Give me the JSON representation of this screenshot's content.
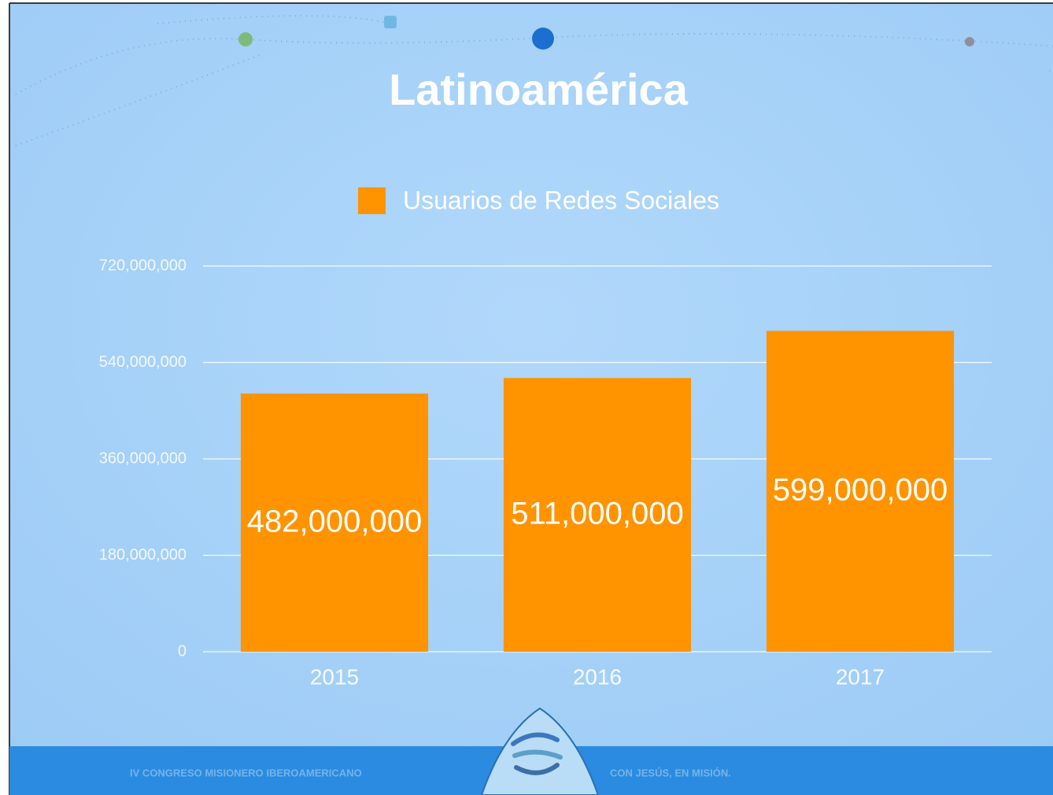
{
  "chart_data": {
    "type": "bar",
    "title": "Latinoamérica",
    "categories": [
      "2015",
      "2016",
      "2017"
    ],
    "series": [
      {
        "name": "Usuarios de Redes Sociales",
        "color": "#ff9300",
        "values": [
          482000000,
          511000000,
          599000000
        ],
        "value_labels": [
          "482,000,000",
          "511,000,000",
          "599,000,000"
        ]
      }
    ],
    "ylim": [
      0,
      720000000
    ],
    "yticks": [
      0,
      {
        "value": 180000000,
        "label": "180,000,000"
      },
      {
        "value": 360000000,
        "label": "360,000,000"
      },
      {
        "value": 540000000,
        "label": "540,000,000"
      },
      {
        "value": 720000000,
        "label": "720,000,000"
      }
    ],
    "grid": true,
    "legend": "top"
  },
  "footer": {
    "left": "IV CONGRESO MISIONERO IBEROAMERICANO",
    "right": "CON JESÚS, EN MISIÓN."
  }
}
